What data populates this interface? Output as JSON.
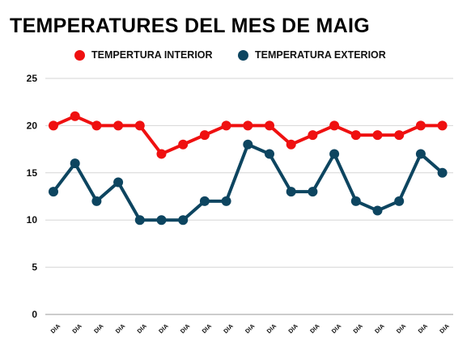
{
  "chart_data": {
    "type": "line",
    "title": "TEMPERATURES DEL MES DE MAIG",
    "xlabel": "",
    "ylabel": "",
    "ylim": [
      0,
      25
    ],
    "yticks": [
      "0",
      "5",
      "10",
      "15",
      "20",
      "25"
    ],
    "categories": [
      "DIA",
      "DIA",
      "DIA",
      "DIA",
      "DIA",
      "DIA",
      "DIA",
      "DIA",
      "DIA",
      "DIA",
      "DIA",
      "DIA",
      "DIA",
      "DIA",
      "DIA",
      "DIA",
      "DIA",
      "DIA",
      "DIA"
    ],
    "grid": true,
    "legend_position": "top",
    "series": [
      {
        "name": "TEMPERTURA INTERIOR",
        "color": "#ef1010",
        "values": [
          20,
          21,
          20,
          20,
          20,
          17,
          18,
          19,
          20,
          20,
          20,
          18,
          19,
          20,
          19,
          19,
          19,
          20,
          20
        ]
      },
      {
        "name": "TEMPERATURA EXTERIOR",
        "color": "#0d4560",
        "values": [
          13,
          16,
          12,
          14,
          10,
          10,
          10,
          12,
          12,
          18,
          17,
          13,
          13,
          17,
          12,
          11,
          12,
          17,
          15
        ]
      }
    ]
  }
}
